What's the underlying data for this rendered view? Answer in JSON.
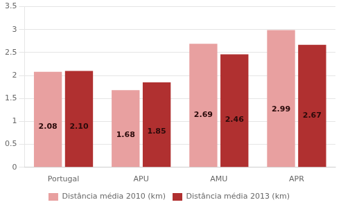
{
  "chart_data": {
    "type": "bar",
    "categories": [
      "Portugal",
      "APU",
      "AMU",
      "APR"
    ],
    "series": [
      {
        "name": "Distância média 2010 (km)",
        "color": "#e8a0a0",
        "values": [
          2.08,
          1.68,
          2.69,
          2.99
        ],
        "value_labels": [
          "2.08",
          "1.68",
          "2.69",
          "2.99"
        ]
      },
      {
        "name": "Distância média 2013 (km)",
        "color": "#b03030",
        "values": [
          2.1,
          1.85,
          2.46,
          2.67
        ],
        "value_labels": [
          "2.10",
          "1.85",
          "2.46",
          "2.67"
        ]
      }
    ],
    "ylim": [
      0,
      3.5
    ],
    "yticks": [
      0,
      0.5,
      1,
      1.5,
      2,
      2.5,
      3,
      3.5
    ],
    "grid": true,
    "legend": "bottom",
    "data_labels": true
  }
}
